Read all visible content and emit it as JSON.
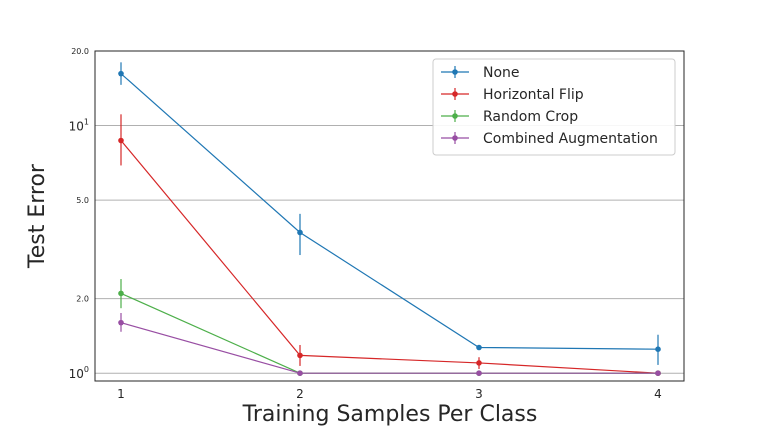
{
  "chart_data": {
    "type": "line",
    "title": "",
    "xlabel": "Training Samples Per Class",
    "ylabel": "Test Error",
    "x": [
      1,
      2,
      3,
      4
    ],
    "x_tick_labels": [
      "1",
      "2",
      "3",
      "4"
    ],
    "yscale": "log",
    "ylim": [
      0.93,
      20.0
    ],
    "y_ticks": [
      {
        "value": 1.0,
        "label": "10",
        "sup": "0"
      },
      {
        "value": 2.0,
        "label": "2.0",
        "sup": ""
      },
      {
        "value": 5.0,
        "label": "5.0",
        "sup": ""
      },
      {
        "value": 10.0,
        "label": "10",
        "sup": "1"
      },
      {
        "value": 20.0,
        "label": "20.0",
        "sup": ""
      }
    ],
    "grid": true,
    "legend_position": "top-right",
    "series": [
      {
        "name": "None",
        "color": "#1f77b4",
        "values": [
          16.2,
          3.7,
          1.27,
          1.25
        ],
        "err_low": [
          14.6,
          3.0,
          1.27,
          1.08
        ],
        "err_high": [
          18.0,
          4.4,
          1.27,
          1.43
        ]
      },
      {
        "name": "Horizontal Flip",
        "color": "#d62728",
        "values": [
          8.7,
          1.18,
          1.1,
          1.0
        ],
        "err_low": [
          6.9,
          1.07,
          1.04,
          1.0
        ],
        "err_high": [
          11.1,
          1.3,
          1.16,
          1.0
        ]
      },
      {
        "name": "Random Crop",
        "color": "#4daf4a",
        "values": [
          2.1,
          1.0,
          1.0,
          1.0
        ],
        "err_low": [
          1.83,
          1.0,
          1.0,
          1.0
        ],
        "err_high": [
          2.4,
          1.0,
          1.0,
          1.0
        ]
      },
      {
        "name": "Combined Augmentation",
        "color": "#984ea3",
        "values": [
          1.6,
          1.0,
          1.0,
          1.0
        ],
        "err_low": [
          1.47,
          1.0,
          1.0,
          1.0
        ],
        "err_high": [
          1.75,
          1.0,
          1.0,
          1.0
        ]
      }
    ]
  }
}
